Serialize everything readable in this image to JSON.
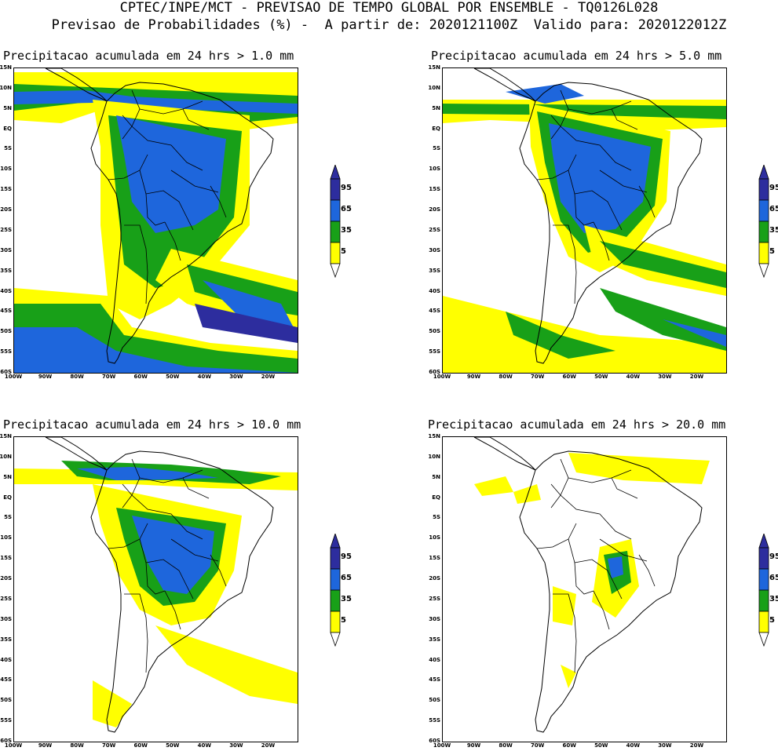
{
  "header": {
    "line1": "CPTEC/INPE/MCT - PREVISAO DE TEMPO GLOBAL POR ENSEMBLE - TQ0126L028",
    "line2": "Previsao de Probabilidades (%) -  A partir de: 2020121100Z  Valido para: 2020122012Z"
  },
  "colors": {
    "p5": "#ffff00",
    "p35": "#18a018",
    "p65": "#1e66dc",
    "p95": "#2d2d9e"
  },
  "legend_labels": [
    "95",
    "65",
    "35",
    "5"
  ],
  "lat_labels": [
    "15N",
    "10N",
    "5N",
    "EQ",
    "5S",
    "10S",
    "15S",
    "20S",
    "25S",
    "30S",
    "35S",
    "40S",
    "45S",
    "50S",
    "55S",
    "60S"
  ],
  "lon_labels": [
    "100W",
    "90W",
    "80W",
    "70W",
    "60W",
    "50W",
    "40W",
    "30W",
    "20W"
  ],
  "panels": [
    {
      "title": "Precipitacao acumulada em 24 hrs > 1.0 mm"
    },
    {
      "title": "Precipitacao acumulada em 24 hrs > 5.0 mm"
    },
    {
      "title": "Precipitacao acumulada em 24 hrs > 10.0 mm"
    },
    {
      "title": "Precipitacao acumulada em 24 hrs > 20.0 mm"
    }
  ]
}
